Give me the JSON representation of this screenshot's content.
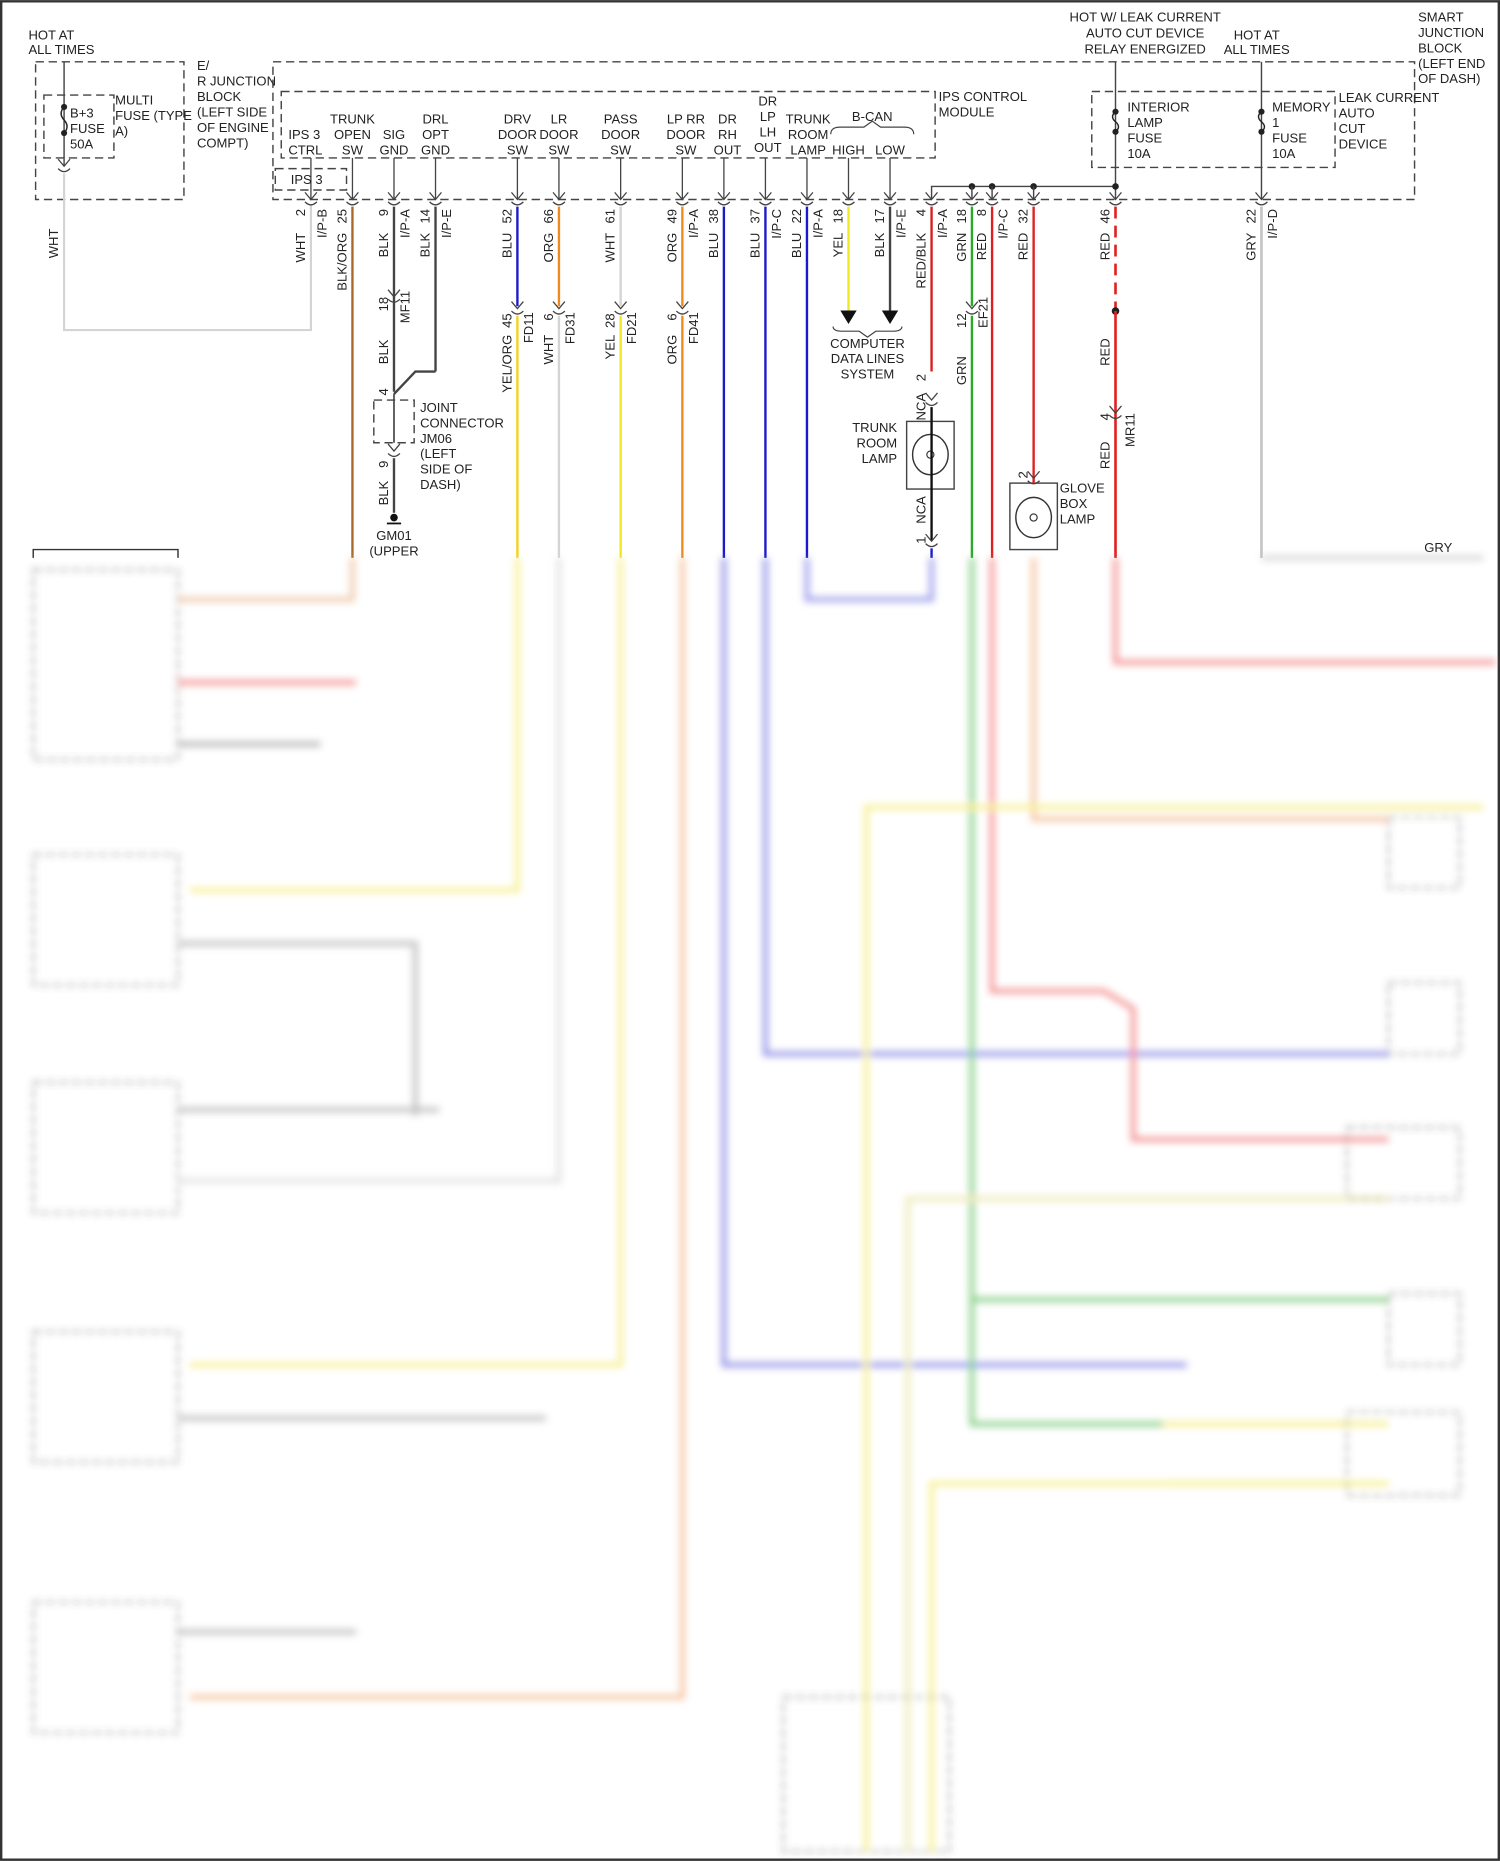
{
  "left_supply": {
    "hot": [
      "HOT AT",
      "ALL TIMES"
    ],
    "fuse": [
      "B+3",
      "FUSE",
      "50A"
    ],
    "multi_fuse": [
      "MULTI",
      "FUSE (TYPE",
      "A)"
    ],
    "er_block": [
      "E/",
      "R JUNCTION",
      "BLOCK",
      "(LEFT SIDE",
      "OF ENGINE",
      "COMPT)"
    ],
    "wire_color": "WHT"
  },
  "right_supply": {
    "leak_hot": [
      "HOT W/ LEAK CURRENT",
      "AUTO CUT DEVICE",
      "RELAY ENERGIZED"
    ],
    "hot": [
      "HOT AT",
      "ALL TIMES"
    ],
    "smart_block": [
      "SMART",
      "JUNCTION",
      "BLOCK",
      "(LEFT END",
      "OF DASH)"
    ],
    "interior_fuse": [
      "INTERIOR",
      "LAMP",
      "FUSE",
      "10A"
    ],
    "memory_fuse": [
      "MEMORY",
      "1",
      "FUSE",
      "10A"
    ],
    "leak_device": [
      "LEAK CURRENT",
      "AUTO",
      "CUT",
      "DEVICE"
    ]
  },
  "ips_module": {
    "label": [
      "IPS CONTROL",
      "MODULE"
    ],
    "ips3_box": "IPS 3",
    "bcan": "B-CAN"
  },
  "terminals": [
    {
      "name": [
        "IPS 3",
        "CTRL"
      ],
      "pin": "2",
      "connector": "I/P-B",
      "wire": "WHT",
      "hex": "#d4d4d4"
    },
    {
      "name": [
        "TRUNK",
        "OPEN",
        "SW"
      ],
      "pin": "25",
      "connector": "",
      "wire": "BLK/ORG",
      "hex": "#a86a2c"
    },
    {
      "name": [
        "SIG",
        "GND"
      ],
      "pin": "9",
      "connector": "I/P-A",
      "wire": "BLK",
      "hex": "#444444"
    },
    {
      "name": [
        "DRL",
        "OPT",
        "GND"
      ],
      "pin": "14",
      "connector": "I/P-E",
      "wire": "BLK",
      "hex": "#444444"
    },
    {
      "name": [
        "DRV",
        "DOOR",
        "SW"
      ],
      "pin": "52",
      "connector": "",
      "wire": "BLU",
      "hex": "#1a1acc",
      "lower": {
        "pin": "45",
        "connector": "FD11",
        "wire": "YEL/ORG",
        "hex": "#f2d21a"
      }
    },
    {
      "name": [
        "LR",
        "DOOR",
        "SW"
      ],
      "pin": "66",
      "connector": "",
      "wire": "ORG",
      "hex": "#f08a1a",
      "lower": {
        "pin": "6",
        "connector": "FD31",
        "wire": "WHT",
        "hex": "#d4d4d4"
      }
    },
    {
      "name": [
        "PASS",
        "DOOR",
        "SW"
      ],
      "pin": "61",
      "connector": "",
      "wire": "WHT",
      "hex": "#d4d4d4",
      "lower": {
        "pin": "28",
        "connector": "FD21",
        "wire": "YEL",
        "hex": "#f0e820"
      }
    },
    {
      "name": [
        "LP RR",
        "DOOR",
        "SW"
      ],
      "pin": "49",
      "connector": "I/P-A",
      "wire": "ORG",
      "hex": "#f08a1a",
      "lower": {
        "pin": "6",
        "connector": "FD41",
        "wire": "ORG",
        "hex": "#f08a1a"
      }
    },
    {
      "name": [
        "DR",
        "RH",
        "OUT"
      ],
      "pin": "38",
      "connector": "",
      "wire": "BLU",
      "hex": "#1a1acc"
    },
    {
      "name": [
        "DR",
        "LP",
        "LH",
        "OUT"
      ],
      "pin": "37",
      "connector": "I/P-C",
      "wire": "BLU",
      "hex": "#1a1acc"
    },
    {
      "name": [
        "TRUNK",
        "ROOM",
        "LAMP"
      ],
      "pin": "22",
      "connector": "I/P-A",
      "wire": "BLU",
      "hex": "#1a1acc"
    },
    {
      "name": [
        "HIGH"
      ],
      "pin": "18",
      "connector": "",
      "wire": "YEL",
      "hex": "#f0e820"
    },
    {
      "name": [
        "LOW"
      ],
      "pin": "17",
      "connector": "I/P-E",
      "wire": "BLK",
      "hex": "#444444"
    },
    {
      "name": [],
      "pin": "4",
      "connector": "I/P-A",
      "wire": "RED/BLK",
      "hex": "#d82020"
    },
    {
      "name": [],
      "pin": "18",
      "connector": "",
      "wire": "GRN",
      "hex": "#2aaa2a",
      "lower": {
        "pin": "12",
        "connector": "EF21",
        "wire": "GRN",
        "hex": "#2aaa2a"
      }
    },
    {
      "name": [],
      "pin": "8",
      "connector": "I/P-C",
      "wire": "RED",
      "hex": "#e02020"
    },
    {
      "name": [],
      "pin": "32",
      "connector": "",
      "wire": "RED",
      "hex": "#e02020"
    },
    {
      "name": [],
      "pin": "46",
      "connector": "",
      "wire": "RED",
      "hex": "#e02020",
      "lower": {
        "pin": "4",
        "connector": "MR11",
        "wire": "RED",
        "hex": "#e02020"
      },
      "mid_wire": "RED"
    },
    {
      "name": [],
      "pin": "22",
      "connector": "I/P-D",
      "wire": "GRY",
      "hex": "#c4c4c4"
    }
  ],
  "joint_connector": {
    "upper_pin": "18",
    "upper_connector": "MF11",
    "upper_wire": "BLK",
    "pin_in": "4",
    "pin_out": "9",
    "out_wire": "BLK",
    "label": [
      "JOINT",
      "CONNECTOR",
      "JM06",
      "(LEFT",
      "SIDE OF",
      "DASH)"
    ],
    "ground": [
      "GM01",
      "(UPPER"
    ]
  },
  "computer_data_lines": [
    "COMPUTER",
    "DATA LINES",
    "SYSTEM"
  ],
  "trunk_room_lamp": {
    "label": [
      "TRUNK",
      "ROOM",
      "LAMP"
    ],
    "pin_top": "2",
    "pin_bottom": "1",
    "wire_top": "NCA",
    "wire_bottom": "NCA"
  },
  "glove_box_lamp": {
    "label": [
      "GLOVE",
      "BOX",
      "LAMP"
    ],
    "pin": "2"
  },
  "gry_run_label": "GRY"
}
